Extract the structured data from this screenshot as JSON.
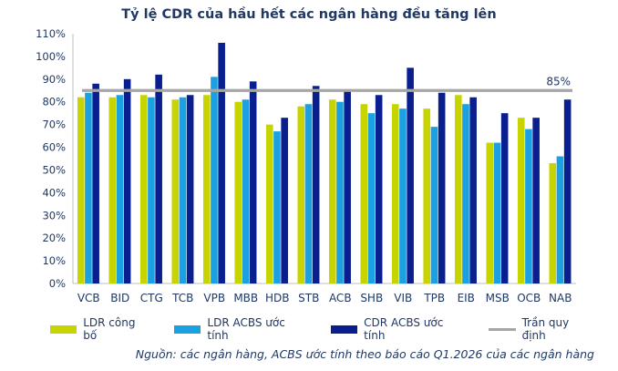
{
  "chart_data": {
    "type": "bar",
    "title": "Tỷ lệ CDR của hầu hết các ngân hàng đều tăng lên",
    "categories": [
      "VCB",
      "BID",
      "CTG",
      "TCB",
      "VPB",
      "MBB",
      "HDB",
      "STB",
      "ACB",
      "SHB",
      "VIB",
      "TPB",
      "EIB",
      "MSB",
      "OCB",
      "NAB"
    ],
    "series": [
      {
        "name": "LDR công bố",
        "color": "#c8d400",
        "values": [
          82,
          82,
          83,
          81,
          83,
          80,
          70,
          78,
          81,
          79,
          79,
          77,
          83,
          62,
          73,
          53
        ]
      },
      {
        "name": "LDR ACBS ước tính",
        "color": "#1ba1e2",
        "values": [
          84,
          83,
          82,
          82,
          91,
          81,
          67,
          79,
          80,
          75,
          77,
          69,
          79,
          62,
          68,
          56
        ]
      },
      {
        "name": "CDR ACBS ước tính",
        "color": "#0a1f8f",
        "values": [
          88,
          90,
          92,
          83,
          106,
          89,
          73,
          87,
          85,
          83,
          95,
          84,
          82,
          75,
          73,
          81
        ]
      }
    ],
    "reference_line": {
      "name": "Trần quy định",
      "value": 85,
      "label": "85%",
      "color": "#a6a6a6"
    },
    "ylim": [
      0,
      110
    ],
    "yticks": [
      "0%",
      "10%",
      "20%",
      "30%",
      "40%",
      "50%",
      "60%",
      "70%",
      "80%",
      "90%",
      "100%",
      "110%"
    ],
    "grid": "none",
    "legend_position": "bottom"
  },
  "source_note": "Nguồn: các ngân hàng, ACBS ước tính theo báo cáo Q1.2026 của các ngân hàng"
}
